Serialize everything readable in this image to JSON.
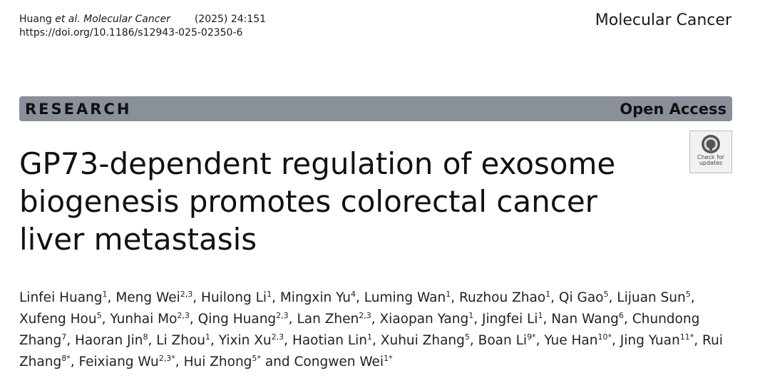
{
  "header": {
    "first_author": "Huang",
    "etal": "et al.",
    "journal_italic": "Molecular Cancer",
    "year_volume": "(2025) 24:151",
    "doi": "https://doi.org/10.1186/s12943-025-02350-6",
    "journal": "Molecular Cancer"
  },
  "banner": {
    "section": "RESEARCH",
    "access": "Open Access"
  },
  "badge": {
    "line1": "Check for",
    "line2": "updates"
  },
  "title": "GP73-dependent regulation of exosome biogenesis promotes colorectal cancer liver metastasis",
  "authors": [
    {
      "name": "Linfei Huang",
      "sup": "1",
      "after": ","
    },
    {
      "name": "Meng Wei",
      "sup": "2,3",
      "after": ","
    },
    {
      "name": "Huilong Li",
      "sup": "1",
      "after": ","
    },
    {
      "name": "Mingxin Yu",
      "sup": "4",
      "after": ","
    },
    {
      "name": "Luming Wan",
      "sup": "1",
      "after": ","
    },
    {
      "name": "Ruzhou Zhao",
      "sup": "1",
      "after": ","
    },
    {
      "name": "Qi Gao",
      "sup": "5",
      "after": ","
    },
    {
      "name": "Lijuan Sun",
      "sup": "5",
      "after": ","
    },
    {
      "name": "Xufeng Hou",
      "sup": "5",
      "after": ","
    },
    {
      "name": "Yunhai Mo",
      "sup": "2,3",
      "after": ","
    },
    {
      "name": "Qing Huang",
      "sup": "2,3",
      "after": ","
    },
    {
      "name": "Lan Zhen",
      "sup": "2,3",
      "after": ","
    },
    {
      "name": "Xiaopan Yang",
      "sup": "1",
      "after": ","
    },
    {
      "name": "Jingfei Li",
      "sup": "1",
      "after": ","
    },
    {
      "name": "Nan Wang",
      "sup": "6",
      "after": ","
    },
    {
      "name": "Chundong Zhang",
      "sup": "7",
      "after": ","
    },
    {
      "name": "Haoran Jin",
      "sup": "8",
      "after": ","
    },
    {
      "name": "Li Zhou",
      "sup": "1",
      "after": ","
    },
    {
      "name": "Yixin Xu",
      "sup": "2,3",
      "after": ","
    },
    {
      "name": "Haotian Lin",
      "sup": "1",
      "after": ","
    },
    {
      "name": "Xuhui Zhang",
      "sup": "5",
      "after": ","
    },
    {
      "name": "Boan Li",
      "sup": "9*",
      "after": ","
    },
    {
      "name": "Yue Han",
      "sup": "10*",
      "after": ","
    },
    {
      "name": "Jing Yuan",
      "sup": "11*",
      "after": ","
    },
    {
      "name": "Rui Zhang",
      "sup": "8*",
      "after": ","
    },
    {
      "name": "Feixiang Wu",
      "sup": "2,3*",
      "after": ","
    },
    {
      "name": "Hui Zhong",
      "sup": "5*",
      "after": "and"
    },
    {
      "name": "Congwen Wei",
      "sup": "1*"
    }
  ]
}
